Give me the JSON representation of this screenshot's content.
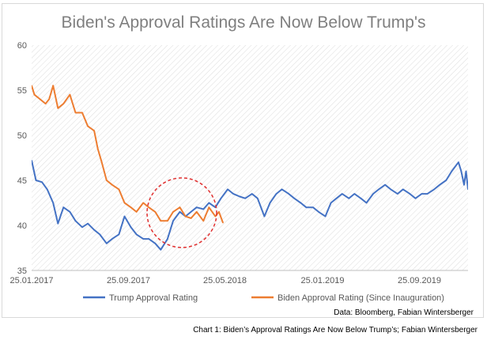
{
  "chart_data": {
    "type": "line",
    "title": "Biden's Approval Ratings Are Now Below Trump's",
    "xlabel": "",
    "ylabel": "",
    "ylim": [
      35,
      60
    ],
    "yticks": [
      "35",
      "40",
      "45",
      "50",
      "55",
      "60"
    ],
    "xticks": [
      "25.01.2017",
      "25.09.2017",
      "25.05.2018",
      "25.01.2019",
      "25.09.2019"
    ],
    "xlim": [
      "25.01.2017",
      "25.01.2020"
    ],
    "grid": false,
    "legend_position": "bottom",
    "source": "Data: Bloomberg, Fabian Wintersberger",
    "annotation": "dashed red circle around the region where the two series overlap (about Jan-May 2018)",
    "series": [
      {
        "name": "Trump Approval Rating",
        "color": "#4472c4",
        "points": [
          [
            "2017-01-25",
            47.2
          ],
          [
            "2017-02-05",
            45.0
          ],
          [
            "2017-02-20",
            44.8
          ],
          [
            "2017-03-05",
            44.0
          ],
          [
            "2017-03-20",
            42.5
          ],
          [
            "2017-04-01",
            40.2
          ],
          [
            "2017-04-15",
            42.0
          ],
          [
            "2017-05-01",
            41.5
          ],
          [
            "2017-05-15",
            40.5
          ],
          [
            "2017-06-01",
            39.8
          ],
          [
            "2017-06-15",
            40.2
          ],
          [
            "2017-07-01",
            39.5
          ],
          [
            "2017-07-15",
            39.0
          ],
          [
            "2017-08-01",
            38.0
          ],
          [
            "2017-08-15",
            38.5
          ],
          [
            "2017-09-01",
            39.0
          ],
          [
            "2017-09-15",
            41.0
          ],
          [
            "2017-10-01",
            39.8
          ],
          [
            "2017-10-15",
            39.0
          ],
          [
            "2017-11-01",
            38.5
          ],
          [
            "2017-11-15",
            38.5
          ],
          [
            "2017-12-01",
            38.0
          ],
          [
            "2017-12-15",
            37.3
          ],
          [
            "2018-01-01",
            38.5
          ],
          [
            "2018-01-15",
            40.5
          ],
          [
            "2018-02-01",
            41.5
          ],
          [
            "2018-02-15",
            41.0
          ],
          [
            "2018-03-01",
            41.5
          ],
          [
            "2018-03-15",
            42.0
          ],
          [
            "2018-04-01",
            41.8
          ],
          [
            "2018-04-15",
            42.5
          ],
          [
            "2018-05-01",
            42.0
          ],
          [
            "2018-05-15",
            43.0
          ],
          [
            "2018-06-01",
            44.0
          ],
          [
            "2018-06-15",
            43.5
          ],
          [
            "2018-07-01",
            43.2
          ],
          [
            "2018-07-15",
            43.0
          ],
          [
            "2018-08-01",
            43.5
          ],
          [
            "2018-08-15",
            43.0
          ],
          [
            "2018-09-01",
            41.0
          ],
          [
            "2018-09-15",
            42.5
          ],
          [
            "2018-10-01",
            43.5
          ],
          [
            "2018-10-15",
            44.0
          ],
          [
            "2018-11-01",
            43.5
          ],
          [
            "2018-11-15",
            43.0
          ],
          [
            "2018-12-01",
            42.5
          ],
          [
            "2018-12-15",
            42.0
          ],
          [
            "2019-01-01",
            42.0
          ],
          [
            "2019-01-15",
            41.5
          ],
          [
            "2019-02-01",
            41.0
          ],
          [
            "2019-02-15",
            42.5
          ],
          [
            "2019-03-01",
            43.0
          ],
          [
            "2019-03-15",
            43.5
          ],
          [
            "2019-04-01",
            43.0
          ],
          [
            "2019-04-15",
            43.5
          ],
          [
            "2019-05-01",
            43.0
          ],
          [
            "2019-05-15",
            42.5
          ],
          [
            "2019-06-01",
            43.5
          ],
          [
            "2019-06-15",
            44.0
          ],
          [
            "2019-07-01",
            44.5
          ],
          [
            "2019-07-15",
            44.0
          ],
          [
            "2019-08-01",
            43.5
          ],
          [
            "2019-08-15",
            44.0
          ],
          [
            "2019-09-01",
            43.5
          ],
          [
            "2019-09-15",
            43.0
          ],
          [
            "2019-10-01",
            43.5
          ],
          [
            "2019-10-15",
            43.5
          ],
          [
            "2019-11-01",
            44.0
          ],
          [
            "2019-11-15",
            44.5
          ],
          [
            "2019-12-01",
            45.0
          ],
          [
            "2019-12-15",
            46.0
          ],
          [
            "2020-01-01",
            47.0
          ],
          [
            "2020-01-08",
            46.0
          ],
          [
            "2020-01-15",
            44.5
          ],
          [
            "2020-01-20",
            46.0
          ],
          [
            "2020-01-25",
            44.0
          ]
        ]
      },
      {
        "name": "Biden Approval Rating (Since Inauguration)",
        "color": "#ed7d31",
        "points": [
          [
            "2017-01-25",
            55.5
          ],
          [
            "2017-02-01",
            54.5
          ],
          [
            "2017-02-15",
            54.0
          ],
          [
            "2017-03-01",
            53.5
          ],
          [
            "2017-03-10",
            54.0
          ],
          [
            "2017-03-20",
            55.5
          ],
          [
            "2017-04-01",
            53.0
          ],
          [
            "2017-04-15",
            53.5
          ],
          [
            "2017-05-01",
            54.5
          ],
          [
            "2017-05-15",
            52.5
          ],
          [
            "2017-06-01",
            52.5
          ],
          [
            "2017-06-15",
            51.0
          ],
          [
            "2017-07-01",
            50.5
          ],
          [
            "2017-07-10",
            48.5
          ],
          [
            "2017-07-20",
            47.0
          ],
          [
            "2017-08-01",
            45.0
          ],
          [
            "2017-08-15",
            44.5
          ],
          [
            "2017-09-01",
            44.0
          ],
          [
            "2017-09-15",
            42.5
          ],
          [
            "2017-10-01",
            42.0
          ],
          [
            "2017-10-15",
            41.5
          ],
          [
            "2017-11-01",
            42.5
          ],
          [
            "2017-11-15",
            42.0
          ],
          [
            "2017-12-01",
            41.5
          ],
          [
            "2017-12-15",
            40.5
          ],
          [
            "2018-01-01",
            40.5
          ],
          [
            "2018-01-15",
            41.5
          ],
          [
            "2018-02-01",
            42.0
          ],
          [
            "2018-02-15",
            41.0
          ],
          [
            "2018-03-01",
            40.8
          ],
          [
            "2018-03-15",
            41.5
          ],
          [
            "2018-04-01",
            40.5
          ],
          [
            "2018-04-15",
            42.0
          ],
          [
            "2018-05-01",
            41.0
          ],
          [
            "2018-05-10",
            41.5
          ],
          [
            "2018-05-20",
            40.3
          ]
        ]
      }
    ]
  },
  "caption": "Chart 1: Biden’s Approval Ratings Are Now Below Trump’s; Fabian Wintersberger"
}
